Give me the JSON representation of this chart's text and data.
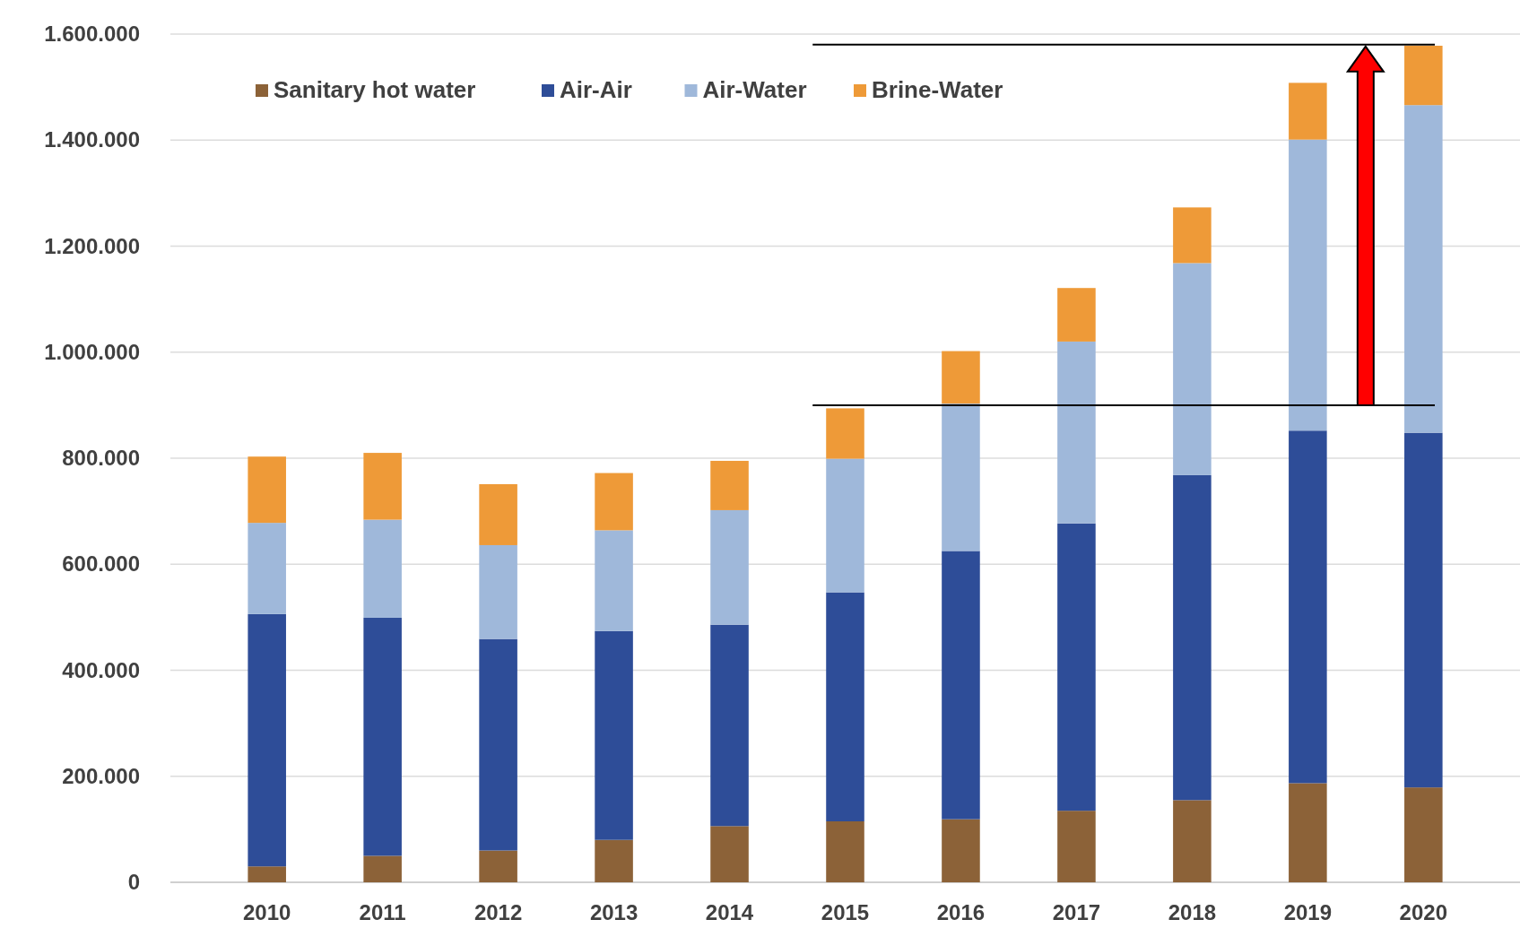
{
  "chart_data": {
    "type": "bar",
    "stacked": true,
    "categories": [
      "2010",
      "2011",
      "2012",
      "2013",
      "2014",
      "2015",
      "2016",
      "2017",
      "2018",
      "2019",
      "2020"
    ],
    "series": [
      {
        "name": "Sanitary hot water",
        "color": "#8c6238",
        "values": [
          30000,
          50000,
          60000,
          80000,
          106000,
          115000,
          119000,
          135000,
          155000,
          187000,
          179000
        ]
      },
      {
        "name": "Air-Air",
        "color": "#2e4d98",
        "values": [
          476000,
          449000,
          399000,
          394000,
          380000,
          432000,
          506000,
          542000,
          613000,
          665000,
          669000
        ]
      },
      {
        "name": "Air-Water",
        "color": "#9fb8da",
        "values": [
          172000,
          185000,
          177000,
          190000,
          216000,
          252000,
          278000,
          343000,
          400000,
          549000,
          618000
        ]
      },
      {
        "name": "Brine-Water",
        "color": "#ee9a38",
        "values": [
          125000,
          126000,
          115000,
          108000,
          93000,
          95000,
          99000,
          101000,
          105000,
          107000,
          112000
        ]
      }
    ],
    "ylim": [
      0,
      1600000
    ],
    "yticks": [
      0,
      {
        "value": 200000,
        "label": "200.000"
      },
      {
        "value": 400000,
        "label": "400.000"
      },
      {
        "value": 600000,
        "label": "600.000"
      },
      {
        "value": 800000,
        "label": "800.000"
      },
      {
        "value": 1000000,
        "label": "1.000.000"
      },
      {
        "value": 1200000,
        "label": "1.200.000"
      },
      {
        "value": 1400000,
        "label": "1.400.000"
      },
      {
        "value": 1600000,
        "label": "1.600.000"
      }
    ],
    "grid": "y",
    "legend": "top left",
    "ref_lines": [
      {
        "axis": "y",
        "value": 900000,
        "color": "#000000"
      },
      {
        "axis": "y",
        "value": 1580000,
        "color": "#000000"
      }
    ]
  }
}
